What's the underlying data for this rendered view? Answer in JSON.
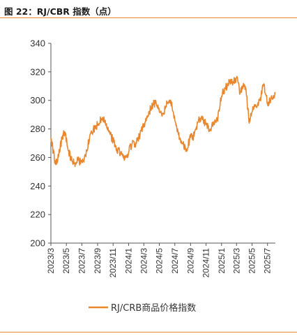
{
  "figure": {
    "title": "图 22：RJ/CBR 指数（点）"
  },
  "colors": {
    "line": "#e8872d",
    "rule": "#e8872d",
    "axis": "#555555"
  },
  "chart_data": {
    "type": "line",
    "title": "",
    "xlabel": "",
    "ylabel": "",
    "ylim": [
      200,
      340
    ],
    "yticks": [
      200,
      220,
      240,
      260,
      280,
      300,
      320,
      340
    ],
    "xlim": [
      "2023-03",
      "2025-08"
    ],
    "xticks": [
      "2023/3",
      "2023/5",
      "2023/7",
      "2023/9",
      "2023/11",
      "2024/1",
      "2024/3",
      "2024/5",
      "2024/7",
      "2024/9",
      "2024/11",
      "2025/1",
      "2025/3",
      "2025/5",
      "2025/7"
    ],
    "grid": false,
    "legend_position": "bottom",
    "series": [
      {
        "name": "RJ/CRB商品价格指数",
        "x": [
          "2023-03-01",
          "2023-03-10",
          "2023-03-20",
          "2023-04-01",
          "2023-04-15",
          "2023-04-25",
          "2023-05-05",
          "2023-05-20",
          "2023-06-01",
          "2023-06-15",
          "2023-07-01",
          "2023-07-15",
          "2023-08-01",
          "2023-08-15",
          "2023-09-01",
          "2023-09-15",
          "2023-10-01",
          "2023-10-15",
          "2023-11-01",
          "2023-11-15",
          "2023-12-01",
          "2023-12-15",
          "2024-01-01",
          "2024-01-15",
          "2024-02-01",
          "2024-02-15",
          "2024-03-01",
          "2024-03-15",
          "2024-04-01",
          "2024-04-15",
          "2024-05-01",
          "2024-05-15",
          "2024-06-01",
          "2024-06-15",
          "2024-07-01",
          "2024-07-15",
          "2024-08-01",
          "2024-08-15",
          "2024-09-01",
          "2024-09-15",
          "2024-10-01",
          "2024-10-15",
          "2024-11-01",
          "2024-11-15",
          "2024-12-01",
          "2024-12-15",
          "2025-01-01",
          "2025-01-15",
          "2025-02-01",
          "2025-02-15",
          "2025-03-01",
          "2025-03-15",
          "2025-04-01",
          "2025-04-08",
          "2025-04-20",
          "2025-05-01",
          "2025-05-15",
          "2025-06-01",
          "2025-06-15",
          "2025-07-01",
          "2025-07-15",
          "2025-08-01"
        ],
        "values": [
          274,
          265,
          255,
          262,
          274,
          278,
          268,
          258,
          256,
          258,
          257,
          262,
          275,
          280,
          283,
          287,
          286,
          278,
          272,
          266,
          263,
          258,
          264,
          270,
          270,
          276,
          283,
          288,
          296,
          298,
          292,
          291,
          298,
          300,
          286,
          276,
          270,
          266,
          274,
          275,
          285,
          289,
          283,
          279,
          285,
          286,
          303,
          308,
          314,
          312,
          316,
          305,
          311,
          306,
          284,
          292,
          297,
          300,
          311,
          298,
          302,
          305
        ]
      }
    ]
  }
}
